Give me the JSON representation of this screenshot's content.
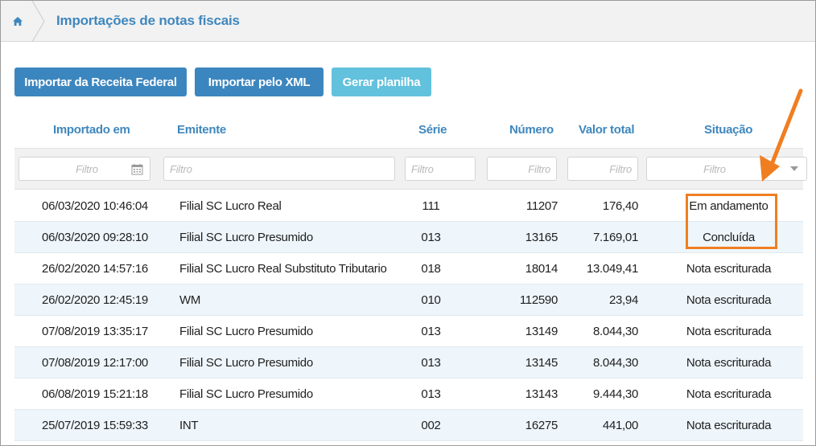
{
  "header": {
    "home_icon": "home-icon",
    "title": "Importações de notas fiscais"
  },
  "toolbar": {
    "import_receita_label": "Importar da Receita Federal",
    "import_xml_label": "Importar pelo XML",
    "gerar_planilha_label": "Gerar planilha"
  },
  "columns": {
    "importado_em": "Importado em",
    "emitente": "Emitente",
    "serie": "Série",
    "numero": "Número",
    "valor_total": "Valor total",
    "situacao": "Situação"
  },
  "filters": {
    "importado_em": "Filtro",
    "emitente": "Filtro",
    "serie": "Filtro",
    "numero": "Filtro",
    "valor_total": "Filtro",
    "situacao": "Filtro"
  },
  "rows": [
    {
      "importado_em": "06/03/2020 10:46:04",
      "emitente": "Filial SC Lucro Real",
      "serie": "111",
      "numero": "11207",
      "valor_total": "176,40",
      "situacao": "Em andamento"
    },
    {
      "importado_em": "06/03/2020 09:28:10",
      "emitente": "Filial SC Lucro Presumido",
      "serie": "013",
      "numero": "13165",
      "valor_total": "7.169,01",
      "situacao": "Concluída"
    },
    {
      "importado_em": "26/02/2020 14:57:16",
      "emitente": "Filial SC Lucro Real Substituto Tributario",
      "serie": "018",
      "numero": "18014",
      "valor_total": "13.049,41",
      "situacao": "Nota escriturada"
    },
    {
      "importado_em": "26/02/2020 12:45:19",
      "emitente": "WM",
      "serie": "010",
      "numero": "112590",
      "valor_total": "23,94",
      "situacao": "Nota escriturada"
    },
    {
      "importado_em": "07/08/2019 13:35:17",
      "emitente": "Filial SC Lucro Presumido",
      "serie": "013",
      "numero": "13149",
      "valor_total": "8.044,30",
      "situacao": "Nota escriturada"
    },
    {
      "importado_em": "07/08/2019 12:17:00",
      "emitente": "Filial SC Lucro Presumido",
      "serie": "013",
      "numero": "13145",
      "valor_total": "8.044,30",
      "situacao": "Nota escriturada"
    },
    {
      "importado_em": "06/08/2019 15:21:18",
      "emitente": "Filial SC Lucro Presumido",
      "serie": "013",
      "numero": "13143",
      "valor_total": "9.444,30",
      "situacao": "Nota escriturada"
    },
    {
      "importado_em": "25/07/2019 15:59:33",
      "emitente": "INT",
      "serie": "002",
      "numero": "16275",
      "valor_total": "441,00",
      "situacao": "Nota escriturada"
    }
  ],
  "colors": {
    "primary": "#3c86bf",
    "secondary": "#62c1dd",
    "header_text": "#3f87bd",
    "highlight": "#f07e21",
    "row_alt": "#eef5fb"
  }
}
